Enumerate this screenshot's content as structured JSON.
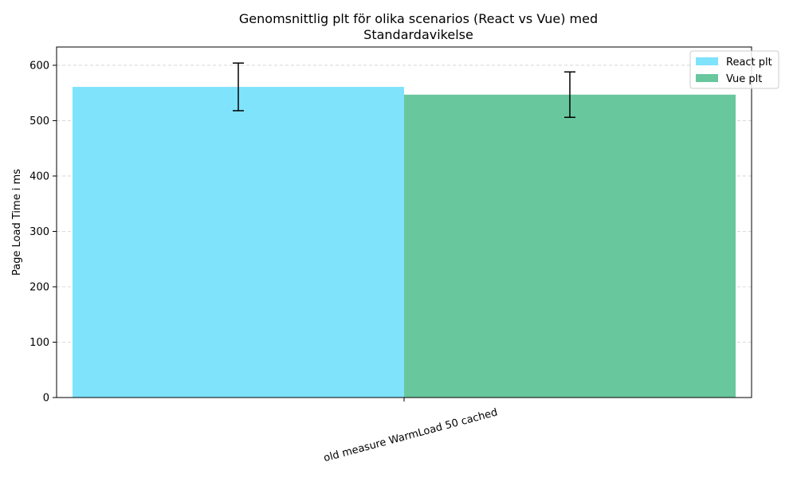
{
  "chart_data": {
    "type": "bar",
    "title": "Genomsnittlig plt för olika scenarios (React vs Vue) med\nStandardavikelse",
    "xlabel": "",
    "ylabel": "Page Load Time i ms",
    "categories": [
      "old measure WarmLoad 50 cached"
    ],
    "series": [
      {
        "name": "React plt",
        "values": [
          561
        ],
        "error": [
          43
        ],
        "color": "#7fe3fb"
      },
      {
        "name": "Vue plt",
        "values": [
          547
        ],
        "error": [
          41
        ],
        "color": "#69c79e"
      }
    ],
    "ylim": [
      0,
      633
    ],
    "yticks": [
      0,
      100,
      200,
      300,
      400,
      500,
      600
    ],
    "grid": "y-dashed",
    "legend": "top-right",
    "xtick_rotation": 15
  }
}
